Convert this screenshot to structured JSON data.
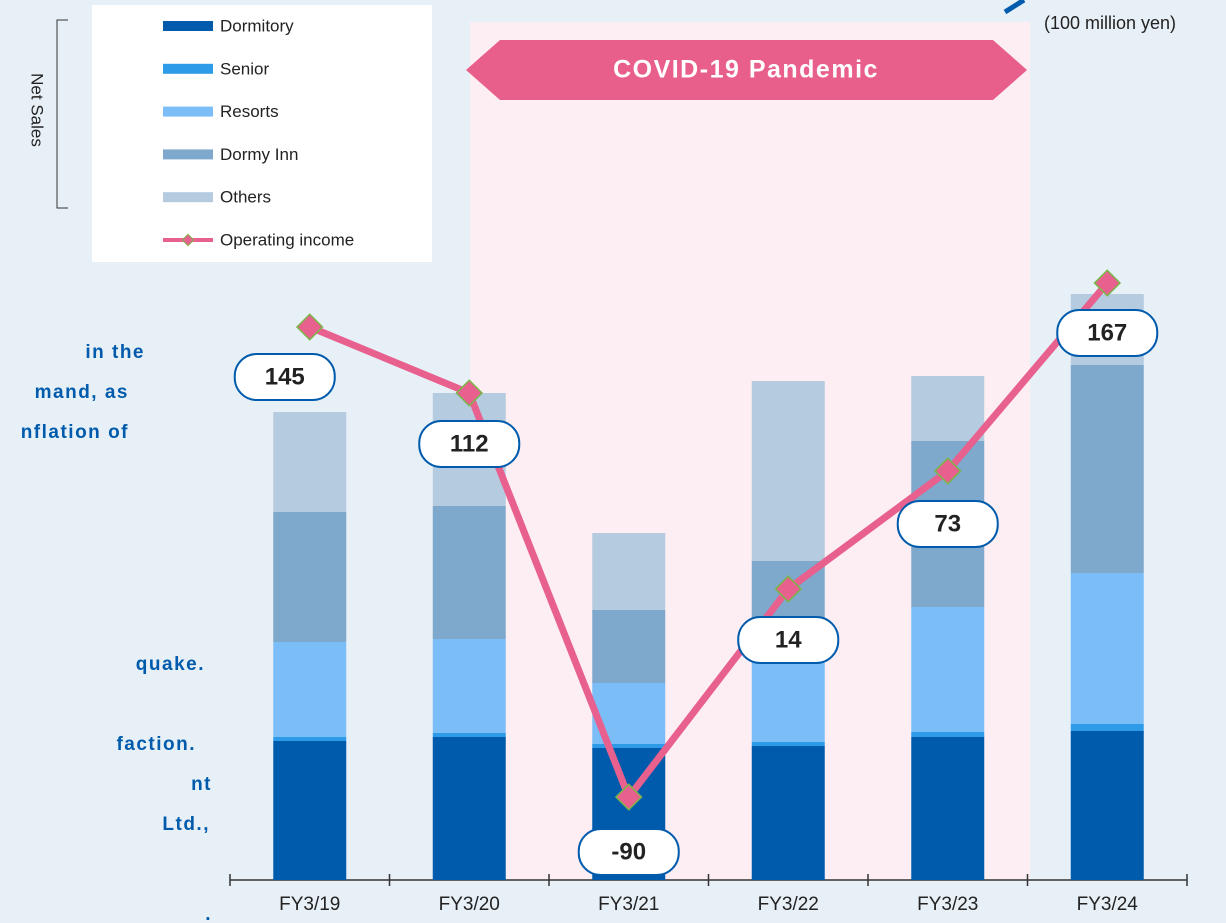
{
  "chart_data": {
    "type": "bar",
    "categories": [
      "FY3/19",
      "FY3/20",
      "FY3/21",
      "FY3/22",
      "FY3/23",
      "FY3/24"
    ],
    "series": [
      {
        "name": "Dormitory",
        "color": "#005bac",
        "values": [
          556,
          572,
          528,
          536,
          572,
          596
        ]
      },
      {
        "name": "Senior",
        "color": "#2e9be8",
        "values": [
          16,
          16,
          16,
          16,
          20,
          28
        ]
      },
      {
        "name": "Resorts",
        "color": "#7bbdf7",
        "values": [
          380,
          376,
          244,
          488,
          500,
          604
        ]
      },
      {
        "name": "Dormy Inn",
        "color": "#7ea8cc",
        "values": [
          520,
          532,
          292,
          236,
          664,
          832
        ]
      },
      {
        "name": "Others",
        "color": "#b4cbe0",
        "values": [
          400,
          452,
          308,
          720,
          260,
          284
        ]
      },
      {
        "name": "Operating income",
        "type": "line",
        "axis": "y2",
        "color": "#e8608e",
        "marker_color": "#7ab648",
        "values": [
          145,
          112,
          -90,
          14,
          73,
          167
        ]
      }
    ],
    "ylim": [
      0,
      3520
    ],
    "y2lim": [
      -131.5,
      308.5
    ],
    "legend_group_label": "Net Sales",
    "annotation": "COVID-19 Pandemic",
    "unit_label": "(100 million yen)",
    "side_text": [
      "in the",
      "mand, as",
      "nflation of",
      "quake.",
      "faction.",
      "nt",
      "Ltd.,",
      "."
    ]
  }
}
